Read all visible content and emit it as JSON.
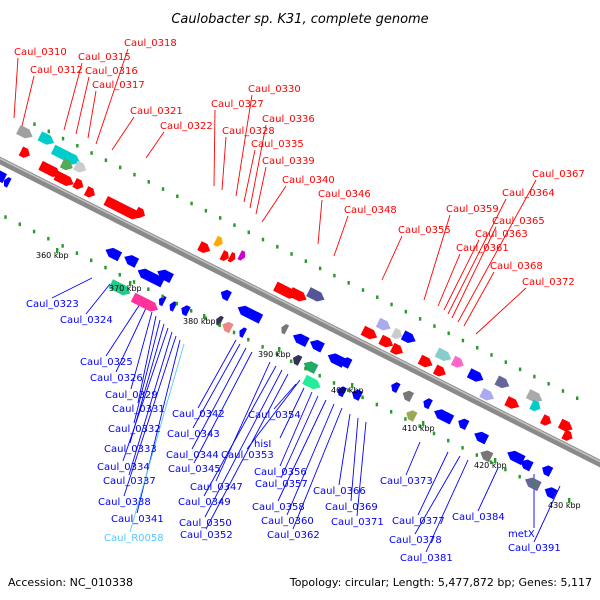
{
  "title": "Caulobacter sp. K31, complete genome",
  "footer": {
    "accession": "Accession: NC_010338",
    "summary": "Topology: circular; Length: 5,477,872 bp; Genes: 5,117"
  },
  "colors": {
    "forward": "#ff0000",
    "reverse": "#0000ff",
    "rna": "#55c8ff",
    "backbone": "#8a8a8a",
    "tick": "#2a9a2a"
  },
  "scale_ticks": [
    {
      "label": "360 kbp"
    },
    {
      "label": "370 kbp"
    },
    {
      "label": "380 kbp"
    },
    {
      "label": "390 kbp"
    },
    {
      "label": "400 kbp"
    },
    {
      "label": "410 kbp"
    },
    {
      "label": "420 kbp"
    },
    {
      "label": "430 kbp"
    }
  ],
  "top_labels": [
    "Caul_0310",
    "Caul_0312",
    "Caul_0315",
    "Caul_0316",
    "Caul_0317",
    "Caul_0318",
    "Caul_0321",
    "Caul_0322",
    "Caul_0327",
    "Caul_0328",
    "Caul_0330",
    "Caul_0335",
    "Caul_0336",
    "Caul_0339",
    "Caul_0340",
    "Caul_0346",
    "Caul_0348",
    "Caul_0355",
    "Caul_0359",
    "Caul_0361",
    "Caul_0363",
    "Caul_0364",
    "Caul_0365",
    "Caul_0367",
    "Caul_0368",
    "Caul_0372"
  ],
  "bottom_labels": [
    "Caul_0323",
    "Caul_0324",
    "Caul_0325",
    "Caul_0326",
    "Caul_0329",
    "Caul_0331",
    "Caul_0332",
    "Caul_0333",
    "Caul_0334",
    "Caul_0337",
    "Caul_0338",
    "Caul_0341",
    "Caul_R0058",
    "Caul_0342",
    "Caul_0343",
    "Caul_0344",
    "Caul_0345",
    "Caul_0347",
    "Caul_0349",
    "Caul_0350",
    "Caul_0352",
    "Caul_0353",
    "Caul_0354",
    "hisI",
    "Caul_0356",
    "Caul_0357",
    "Caul_0358",
    "Caul_0360",
    "Caul_0362",
    "Caul_0366",
    "Caul_0369",
    "Caul_0371",
    "Caul_0373",
    "Caul_0377",
    "Caul_0378",
    "Caul_0381",
    "Caul_0384",
    "metX",
    "Caul_0391"
  ]
}
